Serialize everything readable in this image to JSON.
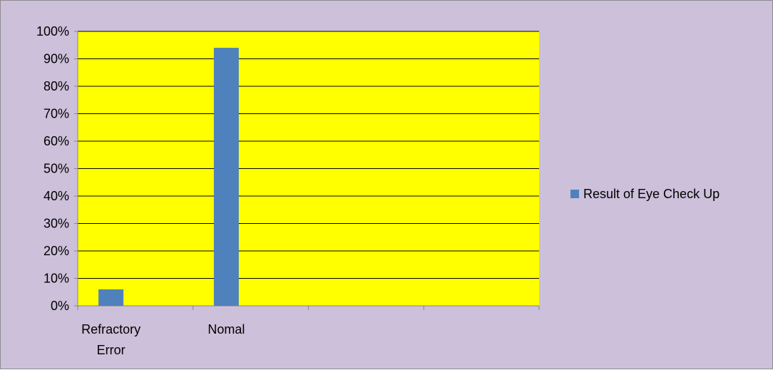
{
  "chart_data": {
    "type": "bar",
    "categories": [
      "Refractory Error",
      "Nomal",
      "",
      ""
    ],
    "series": [
      {
        "name": "Result of Eye Check Up",
        "values": [
          6,
          94,
          null,
          null
        ]
      }
    ],
    "ylim": [
      0,
      100
    ],
    "y_ticks": [
      "0%",
      "10%",
      "20%",
      "30%",
      "40%",
      "50%",
      "60%",
      "70%",
      "80%",
      "90%",
      "100%"
    ],
    "grid": true,
    "legend_position": "right",
    "colors": {
      "chart_background": "#ccc0da",
      "plot_background": "#ffff00",
      "bar": "#4f81bd",
      "gridline": "#000000"
    }
  }
}
